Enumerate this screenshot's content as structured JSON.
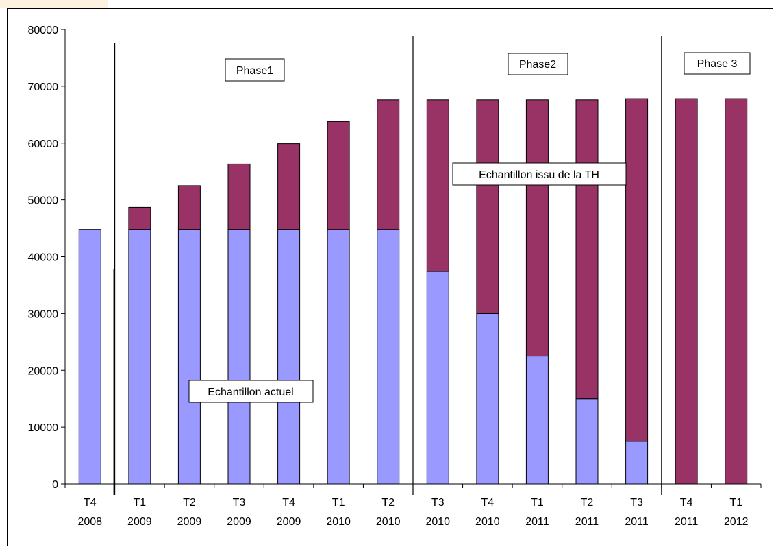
{
  "chart_data": {
    "type": "bar",
    "stacked": true,
    "categories": [
      [
        "T4",
        "2008"
      ],
      [
        "T1",
        "2009"
      ],
      [
        "T2",
        "2009"
      ],
      [
        "T3",
        "2009"
      ],
      [
        "T4",
        "2009"
      ],
      [
        "T1",
        "2010"
      ],
      [
        "T2",
        "2010"
      ],
      [
        "T3",
        "2010"
      ],
      [
        "T4",
        "2010"
      ],
      [
        "T1",
        "2011"
      ],
      [
        "T2",
        "2011"
      ],
      [
        "T3",
        "2011"
      ],
      [
        "T4",
        "2011"
      ],
      [
        "T1",
        "2012"
      ]
    ],
    "series": [
      {
        "name": "Echantillon actuel",
        "color": "#9999ff",
        "values": [
          44800,
          44800,
          44800,
          44800,
          44800,
          44800,
          44800,
          37400,
          30000,
          22500,
          15000,
          7500,
          0,
          0
        ]
      },
      {
        "name": "Echantillon issu de la TH",
        "color": "#993366",
        "values": [
          0,
          3900,
          7700,
          11500,
          15100,
          19000,
          22800,
          30200,
          37600,
          45100,
          52600,
          60300,
          67800,
          67800
        ]
      }
    ],
    "ylim": [
      0,
      80000
    ],
    "yticks": [
      "0",
      "10000",
      "20000",
      "30000",
      "40000",
      "50000",
      "60000",
      "70000",
      "80000"
    ],
    "grid": false,
    "annotations": {
      "phase1": "Phase1",
      "phase2": "Phase2",
      "phase3": "Phase 3",
      "series_label_th": "Echantillon issu de la TH",
      "series_label_actuel": "Echantillon actuel"
    },
    "phase_boundaries_after_category": [
      0,
      6,
      11
    ]
  }
}
